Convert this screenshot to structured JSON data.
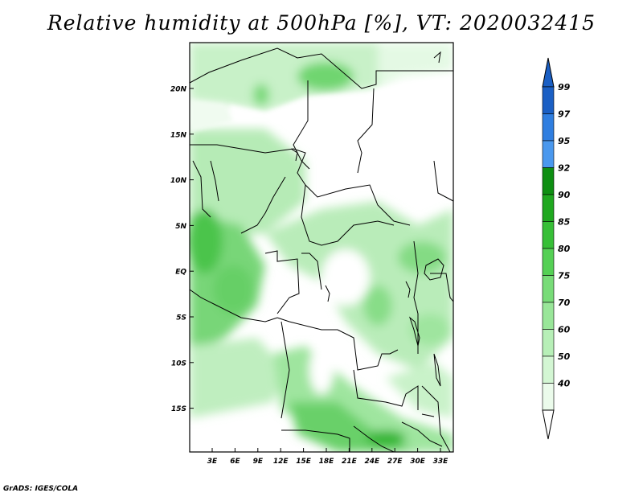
{
  "title": "Relative humidity at 500hPa [%], VT: 2020032415",
  "credit": "GrADS: IGES/COLA",
  "map": {
    "lat_labels": [
      "20N",
      "15N",
      "10N",
      "5N",
      "EQ",
      "5S",
      "10S",
      "15S"
    ],
    "lon_labels": [
      "3E",
      "6E",
      "9E",
      "12E",
      "15E",
      "18E",
      "21E",
      "24E",
      "27E",
      "30E",
      "33E"
    ]
  },
  "colorbar": {
    "labels": [
      "99",
      "97",
      "95",
      "92",
      "90",
      "85",
      "80",
      "75",
      "70",
      "60",
      "50",
      "40"
    ],
    "colors": [
      "#1a5fc4",
      "#2f7ee0",
      "#4a98ee",
      "#0e8f12",
      "#1fa81f",
      "#37bf37",
      "#55d055",
      "#78dc78",
      "#99e699",
      "#b7efb7",
      "#d3f6d3",
      "#ebfbeb"
    ],
    "top_arrow_color": "#1a5fc4",
    "bottom_arrow_color": "#ffffff"
  }
}
